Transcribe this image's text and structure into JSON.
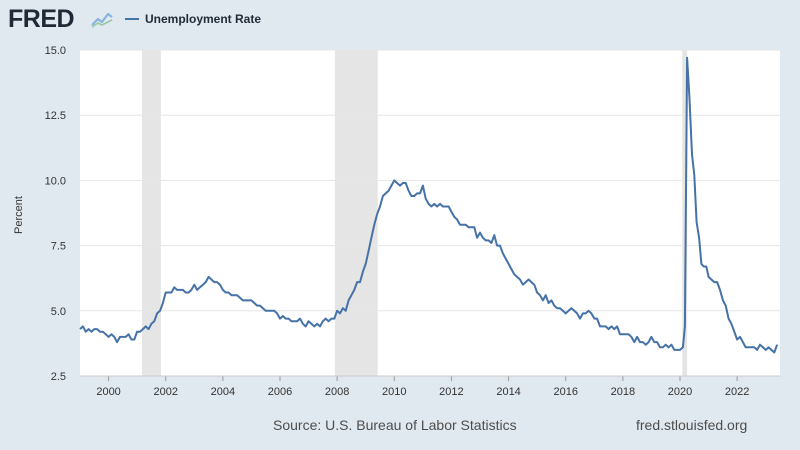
{
  "header": {
    "logo_text": "FRED",
    "logo_icon": "line-chart-icon"
  },
  "footer": {
    "source": "Source: U.S. Bureau of Labor Statistics",
    "site": "fred.stlouisfed.org"
  },
  "chart_data": {
    "type": "line",
    "title": "",
    "xlabel": "",
    "ylabel": "Percent",
    "xlim": [
      1999.0,
      2023.5
    ],
    "ylim": [
      2.5,
      15.0
    ],
    "x_ticks": [
      2000,
      2002,
      2004,
      2006,
      2008,
      2010,
      2012,
      2014,
      2016,
      2018,
      2020,
      2022
    ],
    "y_ticks": [
      "2.5",
      "5.0",
      "7.5",
      "10.0",
      "12.5",
      "15.0"
    ],
    "grid": true,
    "legend": "top-left",
    "recessions": [
      [
        2001.17,
        2001.83
      ],
      [
        2007.92,
        2009.42
      ],
      [
        2020.08,
        2020.25
      ]
    ],
    "series": [
      {
        "name": "Unemployment Rate",
        "color": "#4572a7",
        "points": [
          [
            1999.0,
            4.3
          ],
          [
            1999.1,
            4.4
          ],
          [
            1999.2,
            4.2
          ],
          [
            1999.3,
            4.3
          ],
          [
            1999.4,
            4.2
          ],
          [
            1999.5,
            4.3
          ],
          [
            1999.6,
            4.3
          ],
          [
            1999.7,
            4.2
          ],
          [
            1999.8,
            4.2
          ],
          [
            1999.9,
            4.1
          ],
          [
            2000.0,
            4.0
          ],
          [
            2000.1,
            4.1
          ],
          [
            2000.2,
            4.0
          ],
          [
            2000.3,
            3.8
          ],
          [
            2000.4,
            4.0
          ],
          [
            2000.5,
            4.0
          ],
          [
            2000.6,
            4.0
          ],
          [
            2000.7,
            4.1
          ],
          [
            2000.8,
            3.9
          ],
          [
            2000.9,
            3.9
          ],
          [
            2001.0,
            4.2
          ],
          [
            2001.1,
            4.2
          ],
          [
            2001.2,
            4.3
          ],
          [
            2001.3,
            4.4
          ],
          [
            2001.4,
            4.3
          ],
          [
            2001.5,
            4.5
          ],
          [
            2001.6,
            4.6
          ],
          [
            2001.7,
            4.9
          ],
          [
            2001.8,
            5.0
          ],
          [
            2001.9,
            5.3
          ],
          [
            2002.0,
            5.7
          ],
          [
            2002.1,
            5.7
          ],
          [
            2002.2,
            5.7
          ],
          [
            2002.3,
            5.9
          ],
          [
            2002.4,
            5.8
          ],
          [
            2002.5,
            5.8
          ],
          [
            2002.6,
            5.8
          ],
          [
            2002.7,
            5.7
          ],
          [
            2002.8,
            5.7
          ],
          [
            2002.9,
            5.8
          ],
          [
            2003.0,
            6.0
          ],
          [
            2003.1,
            5.8
          ],
          [
            2003.2,
            5.9
          ],
          [
            2003.3,
            6.0
          ],
          [
            2003.4,
            6.1
          ],
          [
            2003.5,
            6.3
          ],
          [
            2003.6,
            6.2
          ],
          [
            2003.7,
            6.1
          ],
          [
            2003.8,
            6.1
          ],
          [
            2003.9,
            6.0
          ],
          [
            2004.0,
            5.8
          ],
          [
            2004.1,
            5.7
          ],
          [
            2004.2,
            5.7
          ],
          [
            2004.3,
            5.6
          ],
          [
            2004.4,
            5.6
          ],
          [
            2004.5,
            5.6
          ],
          [
            2004.6,
            5.5
          ],
          [
            2004.7,
            5.4
          ],
          [
            2004.8,
            5.4
          ],
          [
            2004.9,
            5.4
          ],
          [
            2005.0,
            5.4
          ],
          [
            2005.1,
            5.3
          ],
          [
            2005.2,
            5.2
          ],
          [
            2005.3,
            5.2
          ],
          [
            2005.4,
            5.1
          ],
          [
            2005.5,
            5.0
          ],
          [
            2005.6,
            5.0
          ],
          [
            2005.7,
            5.0
          ],
          [
            2005.8,
            5.0
          ],
          [
            2005.9,
            4.9
          ],
          [
            2006.0,
            4.7
          ],
          [
            2006.1,
            4.8
          ],
          [
            2006.2,
            4.7
          ],
          [
            2006.3,
            4.7
          ],
          [
            2006.4,
            4.6
          ],
          [
            2006.5,
            4.6
          ],
          [
            2006.6,
            4.6
          ],
          [
            2006.7,
            4.7
          ],
          [
            2006.8,
            4.5
          ],
          [
            2006.9,
            4.4
          ],
          [
            2007.0,
            4.6
          ],
          [
            2007.1,
            4.5
          ],
          [
            2007.2,
            4.4
          ],
          [
            2007.3,
            4.5
          ],
          [
            2007.4,
            4.4
          ],
          [
            2007.5,
            4.6
          ],
          [
            2007.6,
            4.7
          ],
          [
            2007.7,
            4.6
          ],
          [
            2007.8,
            4.7
          ],
          [
            2007.9,
            4.7
          ],
          [
            2008.0,
            5.0
          ],
          [
            2008.1,
            4.9
          ],
          [
            2008.2,
            5.1
          ],
          [
            2008.3,
            5.0
          ],
          [
            2008.4,
            5.4
          ],
          [
            2008.5,
            5.6
          ],
          [
            2008.6,
            5.8
          ],
          [
            2008.7,
            6.1
          ],
          [
            2008.8,
            6.1
          ],
          [
            2008.9,
            6.5
          ],
          [
            2009.0,
            6.8
          ],
          [
            2009.1,
            7.3
          ],
          [
            2009.2,
            7.8
          ],
          [
            2009.3,
            8.3
          ],
          [
            2009.4,
            8.7
          ],
          [
            2009.5,
            9.0
          ],
          [
            2009.6,
            9.4
          ],
          [
            2009.7,
            9.5
          ],
          [
            2009.8,
            9.6
          ],
          [
            2009.9,
            9.8
          ],
          [
            2010.0,
            10.0
          ],
          [
            2010.1,
            9.9
          ],
          [
            2010.2,
            9.8
          ],
          [
            2010.3,
            9.9
          ],
          [
            2010.4,
            9.9
          ],
          [
            2010.5,
            9.6
          ],
          [
            2010.6,
            9.4
          ],
          [
            2010.7,
            9.4
          ],
          [
            2010.8,
            9.5
          ],
          [
            2010.9,
            9.5
          ],
          [
            2011.0,
            9.8
          ],
          [
            2011.1,
            9.3
          ],
          [
            2011.2,
            9.1
          ],
          [
            2011.3,
            9.0
          ],
          [
            2011.4,
            9.1
          ],
          [
            2011.5,
            9.0
          ],
          [
            2011.6,
            9.1
          ],
          [
            2011.7,
            9.0
          ],
          [
            2011.8,
            9.0
          ],
          [
            2011.9,
            9.0
          ],
          [
            2012.0,
            8.8
          ],
          [
            2012.1,
            8.6
          ],
          [
            2012.2,
            8.5
          ],
          [
            2012.3,
            8.3
          ],
          [
            2012.4,
            8.3
          ],
          [
            2012.5,
            8.3
          ],
          [
            2012.6,
            8.2
          ],
          [
            2012.7,
            8.2
          ],
          [
            2012.8,
            8.2
          ],
          [
            2012.9,
            7.8
          ],
          [
            2013.0,
            8.0
          ],
          [
            2013.1,
            7.8
          ],
          [
            2013.2,
            7.7
          ],
          [
            2013.3,
            7.7
          ],
          [
            2013.4,
            7.6
          ],
          [
            2013.5,
            7.9
          ],
          [
            2013.6,
            7.5
          ],
          [
            2013.7,
            7.5
          ],
          [
            2013.8,
            7.2
          ],
          [
            2013.9,
            7.0
          ],
          [
            2014.0,
            6.8
          ],
          [
            2014.1,
            6.6
          ],
          [
            2014.2,
            6.4
          ],
          [
            2014.3,
            6.3
          ],
          [
            2014.4,
            6.2
          ],
          [
            2014.5,
            6.0
          ],
          [
            2014.6,
            6.1
          ],
          [
            2014.7,
            6.2
          ],
          [
            2014.8,
            6.1
          ],
          [
            2014.9,
            6.0
          ],
          [
            2015.0,
            5.7
          ],
          [
            2015.1,
            5.6
          ],
          [
            2015.2,
            5.4
          ],
          [
            2015.3,
            5.6
          ],
          [
            2015.4,
            5.3
          ],
          [
            2015.5,
            5.4
          ],
          [
            2015.6,
            5.2
          ],
          [
            2015.7,
            5.1
          ],
          [
            2015.8,
            5.1
          ],
          [
            2015.9,
            5.0
          ],
          [
            2016.0,
            4.9
          ],
          [
            2016.1,
            5.0
          ],
          [
            2016.2,
            5.1
          ],
          [
            2016.3,
            5.0
          ],
          [
            2016.4,
            4.9
          ],
          [
            2016.5,
            4.7
          ],
          [
            2016.6,
            4.9
          ],
          [
            2016.7,
            4.9
          ],
          [
            2016.8,
            5.0
          ],
          [
            2016.9,
            4.9
          ],
          [
            2017.0,
            4.7
          ],
          [
            2017.1,
            4.7
          ],
          [
            2017.2,
            4.4
          ],
          [
            2017.3,
            4.4
          ],
          [
            2017.4,
            4.4
          ],
          [
            2017.5,
            4.3
          ],
          [
            2017.6,
            4.4
          ],
          [
            2017.7,
            4.3
          ],
          [
            2017.8,
            4.4
          ],
          [
            2017.9,
            4.1
          ],
          [
            2018.0,
            4.1
          ],
          [
            2018.1,
            4.1
          ],
          [
            2018.2,
            4.1
          ],
          [
            2018.3,
            4.0
          ],
          [
            2018.4,
            3.8
          ],
          [
            2018.5,
            4.0
          ],
          [
            2018.6,
            3.8
          ],
          [
            2018.7,
            3.8
          ],
          [
            2018.8,
            3.7
          ],
          [
            2018.9,
            3.8
          ],
          [
            2019.0,
            4.0
          ],
          [
            2019.1,
            3.8
          ],
          [
            2019.2,
            3.8
          ],
          [
            2019.3,
            3.6
          ],
          [
            2019.4,
            3.6
          ],
          [
            2019.5,
            3.7
          ],
          [
            2019.6,
            3.6
          ],
          [
            2019.7,
            3.7
          ],
          [
            2019.8,
            3.5
          ],
          [
            2019.9,
            3.5
          ],
          [
            2020.0,
            3.5
          ],
          [
            2020.1,
            3.6
          ],
          [
            2020.17,
            4.4
          ],
          [
            2020.25,
            14.7
          ],
          [
            2020.33,
            13.2
          ],
          [
            2020.42,
            11.0
          ],
          [
            2020.5,
            10.2
          ],
          [
            2020.58,
            8.4
          ],
          [
            2020.67,
            7.8
          ],
          [
            2020.75,
            6.8
          ],
          [
            2020.83,
            6.7
          ],
          [
            2020.92,
            6.7
          ],
          [
            2021.0,
            6.3
          ],
          [
            2021.1,
            6.2
          ],
          [
            2021.2,
            6.1
          ],
          [
            2021.3,
            6.1
          ],
          [
            2021.4,
            5.8
          ],
          [
            2021.5,
            5.4
          ],
          [
            2021.6,
            5.2
          ],
          [
            2021.7,
            4.7
          ],
          [
            2021.8,
            4.5
          ],
          [
            2021.9,
            4.2
          ],
          [
            2022.0,
            3.9
          ],
          [
            2022.1,
            4.0
          ],
          [
            2022.2,
            3.8
          ],
          [
            2022.3,
            3.6
          ],
          [
            2022.4,
            3.6
          ],
          [
            2022.5,
            3.6
          ],
          [
            2022.6,
            3.6
          ],
          [
            2022.7,
            3.5
          ],
          [
            2022.8,
            3.7
          ],
          [
            2022.9,
            3.6
          ],
          [
            2023.0,
            3.5
          ],
          [
            2023.1,
            3.6
          ],
          [
            2023.2,
            3.5
          ],
          [
            2023.3,
            3.4
          ],
          [
            2023.4,
            3.7
          ]
        ]
      }
    ]
  }
}
